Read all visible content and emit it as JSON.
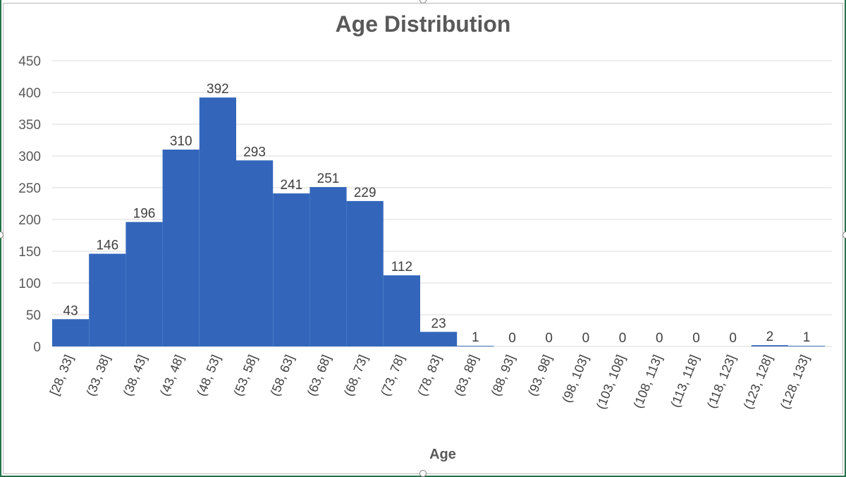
{
  "chart_data": {
    "type": "bar",
    "title": "Age Distribution",
    "xlabel": "Age",
    "ylabel": "",
    "ylim": [
      0,
      450
    ],
    "yticks": [
      0,
      50,
      100,
      150,
      200,
      250,
      300,
      350,
      400,
      450
    ],
    "grid": true,
    "legend": "none",
    "bar_color": "#3366bb",
    "categories": [
      "[28, 33]",
      "(33, 38]",
      "(38, 43]",
      "(43, 48]",
      "(48, 53]",
      "(53, 58]",
      "(58, 63]",
      "(63, 68]",
      "(68, 73]",
      "(73, 78]",
      "(78, 83]",
      "(83, 88]",
      "(88, 93]",
      "(93, 98]",
      "(98, 103]",
      "(103, 108]",
      "(108, 113]",
      "(113, 118]",
      "(118, 123]",
      "(123, 128]",
      "(128, 133]"
    ],
    "values": [
      43,
      146,
      196,
      310,
      392,
      293,
      241,
      251,
      229,
      112,
      23,
      1,
      0,
      0,
      0,
      0,
      0,
      0,
      0,
      2,
      1
    ]
  }
}
